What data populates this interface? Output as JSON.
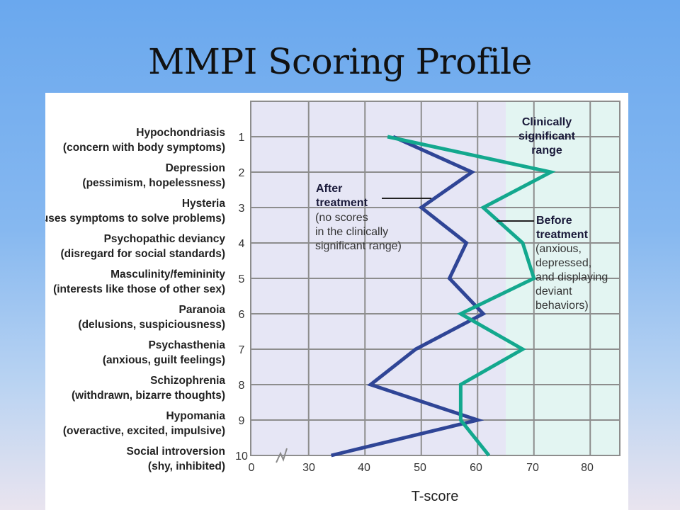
{
  "slide": {
    "title": "MMPI Scoring Profile"
  },
  "colors": {
    "after_treatment": "#2f4596",
    "before_treatment": "#13a88e",
    "plot_background": "#e6e6f5",
    "clinical_background": "#e3f5f2",
    "grid": "#8d8d8d"
  },
  "chart_data": {
    "type": "line",
    "orientation": "horizontal-profile",
    "xlabel": "T-score",
    "x_ticks": [
      "0",
      "30",
      "40",
      "50",
      "60",
      "70",
      "80"
    ],
    "x_axis_break": "between 0 and 30",
    "xlim": [
      25,
      85
    ],
    "grid": true,
    "clinical_threshold": 65,
    "scales": [
      {
        "num": "1",
        "name": "Hypochondriasis",
        "desc": "(concern with body symptoms)"
      },
      {
        "num": "2",
        "name": "Depression",
        "desc": "(pessimism, hopelessness)"
      },
      {
        "num": "3",
        "name": "Hysteria",
        "desc": "(uses symptoms to solve problems)"
      },
      {
        "num": "4",
        "name": "Psychopathic deviancy",
        "desc": "(disregard for social standards)"
      },
      {
        "num": "5",
        "name": "Masculinity/femininity",
        "desc": "(interests like those of other sex)"
      },
      {
        "num": "6",
        "name": "Paranoia",
        "desc": "(delusions, suspiciousness)"
      },
      {
        "num": "7",
        "name": "Psychasthenia",
        "desc": "(anxious, guilt feelings)"
      },
      {
        "num": "8",
        "name": "Schizophrenia",
        "desc": "(withdrawn, bizarre thoughts)"
      },
      {
        "num": "9",
        "name": "Hypomania",
        "desc": "(overactive, excited, impulsive)"
      },
      {
        "num": "10",
        "name": "Social introversion",
        "desc": "(shy, inhibited)"
      }
    ],
    "series": [
      {
        "name": "After treatment",
        "values": [
          45,
          59,
          50,
          58,
          55,
          61,
          49,
          41,
          60,
          34
        ]
      },
      {
        "name": "Before treatment",
        "values": [
          44,
          73,
          61,
          68,
          70,
          57,
          68,
          57,
          57,
          62
        ]
      }
    ],
    "annotations": {
      "clinical": [
        "Clinically",
        "significant",
        "range"
      ],
      "after_title": [
        "After",
        "treatment"
      ],
      "after_note": [
        "(no scores",
        "in the clinically",
        "significant range)"
      ],
      "before_title": [
        "Before",
        "treatment"
      ],
      "before_note": [
        "(anxious,",
        "depressed,",
        "and displaying",
        "deviant",
        "behaviors)"
      ]
    }
  }
}
